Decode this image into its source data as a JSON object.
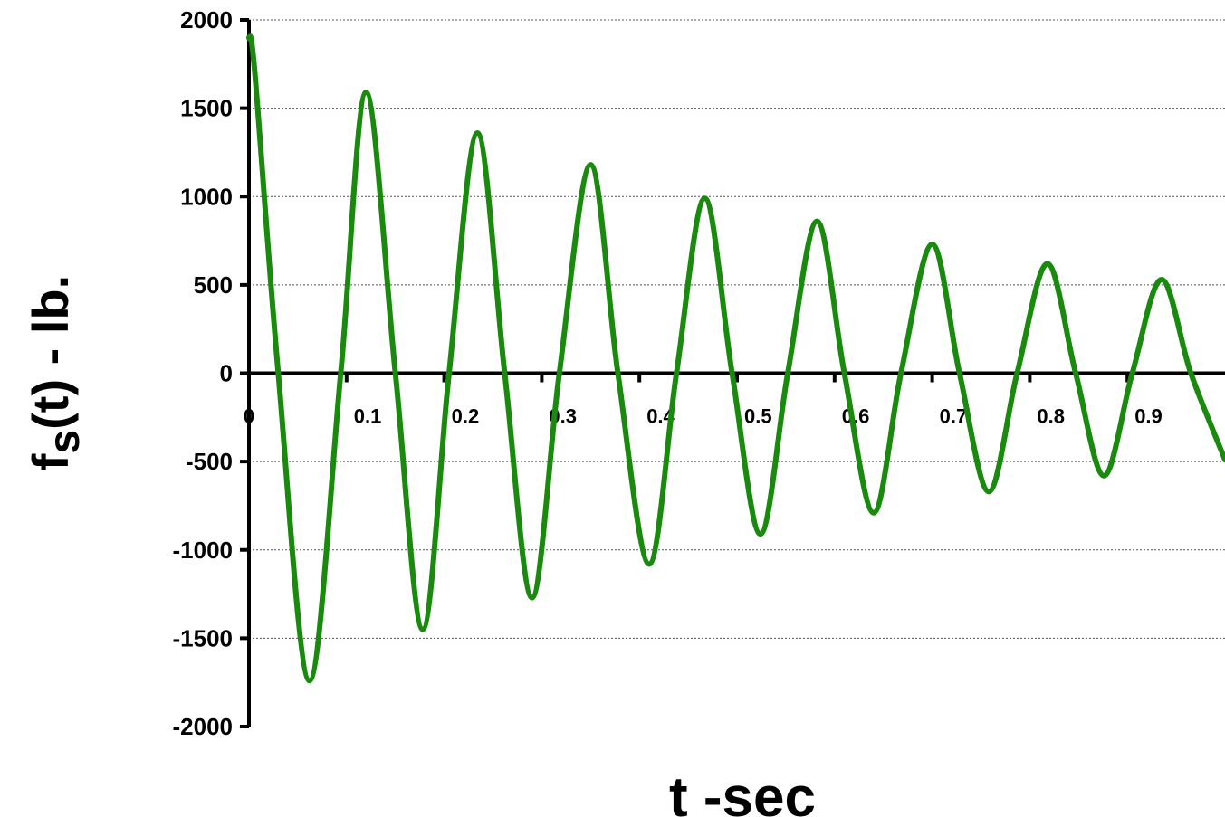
{
  "chart_data": {
    "type": "line",
    "title": "",
    "xlabel": "t -sec",
    "ylabel": "fs(t) - lb.",
    "ylabel_parts": {
      "main": "f",
      "sub": "s",
      "rest": "(t) - lb."
    },
    "xlim": [
      0,
      1.0
    ],
    "ylim": [
      -2000,
      2000
    ],
    "y_ticks": [
      2000,
      1500,
      1000,
      500,
      0,
      -500,
      -1000,
      -1500,
      -2000
    ],
    "y_tick_labels": [
      "2000",
      "1500",
      "1000",
      "500",
      "0",
      "-500",
      "-1000",
      "-1500",
      "-2000"
    ],
    "x_ticks": [
      0,
      0.1,
      0.2,
      0.3,
      0.4,
      0.5,
      0.6,
      0.7,
      0.8,
      0.9
    ],
    "x_tick_labels": [
      "0",
      "0.1",
      "0.2",
      "0.3",
      "0.4",
      "0.5",
      "0.6",
      "0.7",
      "0.8",
      "0.9"
    ],
    "grid": "horizontal-dotted",
    "line_color": "#1a8a0e",
    "series": [
      {
        "x": [
          0,
          0.006,
          0.03,
          0.062,
          0.094,
          0.12,
          0.15,
          0.178,
          0.205,
          0.234,
          0.262,
          0.29,
          0.318,
          0.35,
          0.378,
          0.41,
          0.438,
          0.467,
          0.495,
          0.524,
          0.552,
          0.582,
          0.61,
          0.64,
          0.668,
          0.7,
          0.728,
          0.758,
          0.787,
          0.818,
          0.847,
          0.876,
          0.905,
          0.935,
          0.965,
          1.0
        ],
        "y": [
          1900,
          1700,
          0,
          -1740,
          0,
          1590,
          0,
          -1450,
          0,
          1360,
          0,
          -1270,
          0,
          1180,
          0,
          -1080,
          0,
          990,
          0,
          -910,
          0,
          860,
          0,
          -790,
          0,
          730,
          0,
          -670,
          0,
          620,
          0,
          -580,
          0,
          530,
          0,
          -490
        ]
      }
    ]
  }
}
